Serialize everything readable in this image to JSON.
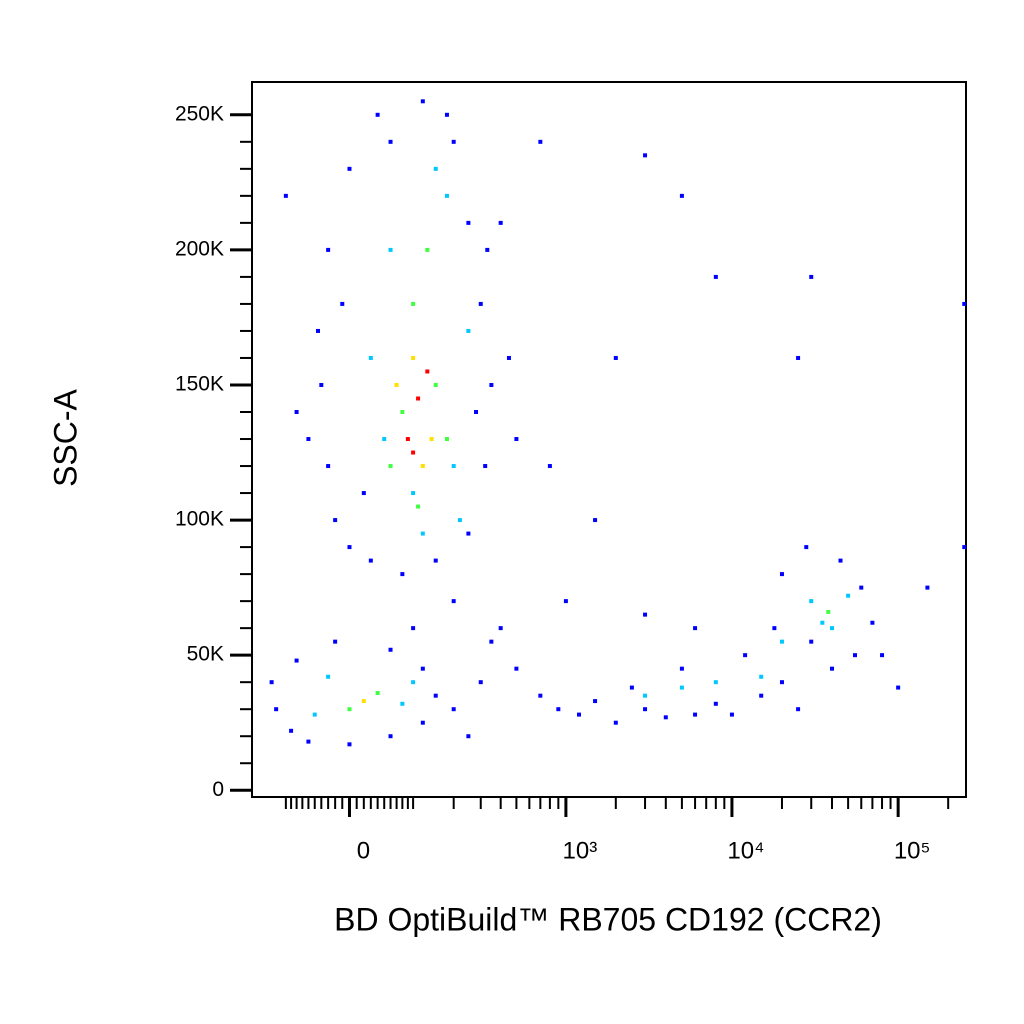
{
  "chart_data": {
    "type": "scatter",
    "x_label": "BD OptiBuild™ RB705 CD192 (CCR2)",
    "y_label": "SSC-A",
    "xscale": "biexponential",
    "xlim": [
      -180,
      256000
    ],
    "ylim": [
      -2500,
      262144
    ],
    "xticks": [
      0,
      {
        "value": 1000,
        "label": "10³"
      },
      {
        "value": 10000,
        "label": "10⁴"
      },
      {
        "value": 100000,
        "label": "10⁵"
      }
    ],
    "yticks": [
      0,
      {
        "value": 50000,
        "label": "50K"
      },
      {
        "value": 100000,
        "label": "100K"
      },
      {
        "value": 150000,
        "label": "150K"
      },
      {
        "value": 200000,
        "label": "200K"
      },
      {
        "value": 250000,
        "label": "250K"
      }
    ],
    "series": [
      {
        "color": "#0000ff",
        "x": [
          -40,
          -30,
          -20,
          0,
          30,
          80,
          150,
          250,
          320,
          350,
          300,
          250,
          200,
          120,
          40,
          0,
          -30,
          -45,
          -60,
          20,
          280,
          330,
          -10,
          60,
          180,
          400,
          450,
          -80,
          -100,
          500,
          -120,
          -90,
          -60,
          0,
          60,
          120,
          150,
          120,
          60,
          -20,
          -80,
          -130,
          200,
          250,
          300,
          100,
          200,
          350,
          500,
          700,
          900,
          1200,
          1500,
          2000,
          2500,
          3000,
          4000,
          5000,
          6000,
          8000,
          10000,
          12000,
          15000,
          20000,
          25000,
          30000,
          20000,
          28000,
          45000,
          60000,
          70000,
          55000,
          40000,
          18000,
          80000,
          100000,
          150000,
          800,
          1500,
          3000,
          5000,
          700,
          2000,
          30000,
          25000,
          8000,
          400,
          1000,
          3000,
          6000,
          250000,
          250000
        ],
        "y": [
          150000,
          120000,
          100000,
          90000,
          85000,
          80000,
          85000,
          95000,
          120000,
          150000,
          180000,
          210000,
          240000,
          255000,
          250000,
          230000,
          200000,
          170000,
          130000,
          110000,
          140000,
          200000,
          180000,
          240000,
          250000,
          210000,
          160000,
          140000,
          220000,
          130000,
          30000,
          22000,
          18000,
          17000,
          20000,
          25000,
          35000,
          45000,
          52000,
          55000,
          48000,
          40000,
          30000,
          20000,
          40000,
          60000,
          70000,
          55000,
          45000,
          35000,
          30000,
          28000,
          33000,
          25000,
          38000,
          30000,
          27000,
          45000,
          28000,
          32000,
          28000,
          50000,
          35000,
          40000,
          30000,
          55000,
          80000,
          90000,
          85000,
          75000,
          62000,
          50000,
          45000,
          60000,
          50000,
          38000,
          75000,
          120000,
          100000,
          235000,
          220000,
          240000,
          160000,
          190000,
          160000,
          190000,
          60000,
          70000,
          65000,
          60000,
          180000,
          90000
        ]
      },
      {
        "color": "#00c8ff",
        "x": [
          50,
          100,
          200,
          250,
          180,
          60,
          30,
          220,
          120,
          150,
          -50,
          80,
          100,
          -30,
          3000,
          5000,
          8000,
          15000,
          20000,
          30000,
          40000,
          50000,
          35000
        ],
        "y": [
          130000,
          110000,
          120000,
          170000,
          220000,
          200000,
          160000,
          100000,
          95000,
          230000,
          28000,
          32000,
          40000,
          42000,
          35000,
          38000,
          40000,
          42000,
          55000,
          70000,
          60000,
          72000,
          62000
        ]
      },
      {
        "color": "#40ff40",
        "x": [
          80,
          150,
          100,
          130,
          60,
          180,
          110,
          0,
          40,
          38000
        ],
        "y": [
          140000,
          150000,
          180000,
          200000,
          120000,
          130000,
          105000,
          30000,
          36000,
          66000
        ]
      },
      {
        "color": "#ffe000",
        "x": [
          100,
          140,
          70,
          120,
          20
        ],
        "y": [
          160000,
          130000,
          150000,
          120000,
          33000
        ]
      },
      {
        "color": "#ff0000",
        "x": [
          110,
          90,
          130,
          100
        ],
        "y": [
          145000,
          130000,
          155000,
          125000
        ]
      }
    ]
  }
}
